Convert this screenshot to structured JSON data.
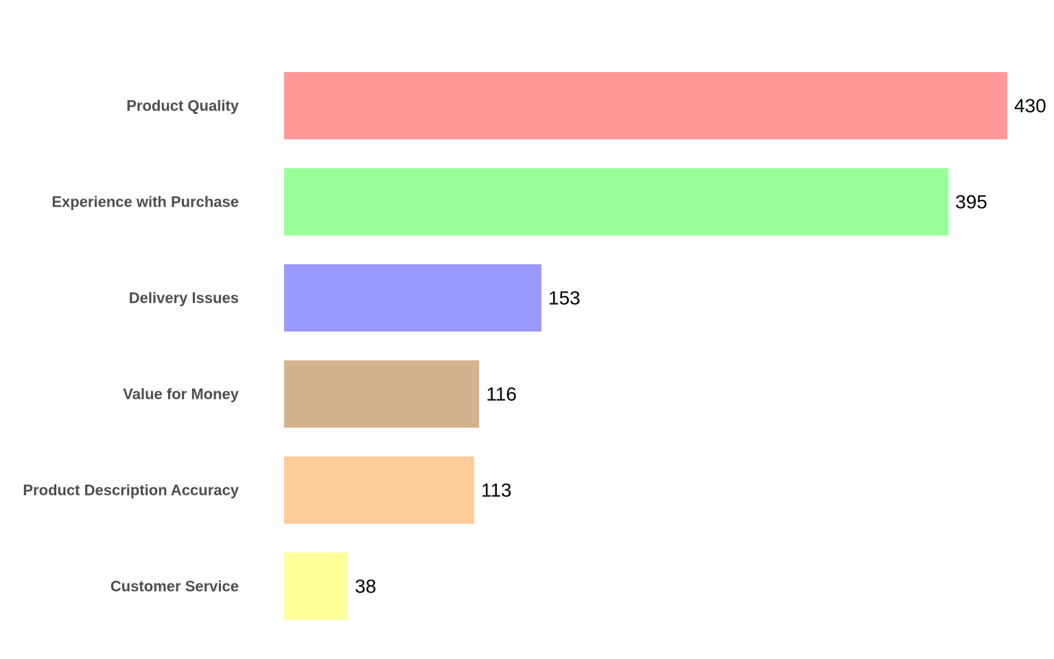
{
  "chart_data": {
    "type": "bar",
    "orientation": "horizontal",
    "title": "",
    "xlabel": "",
    "ylabel": "",
    "categories": [
      "Product Quality",
      "Experience with Purchase",
      "Delivery Issues",
      "Value for Money",
      "Product Description Accuracy",
      "Customer Service"
    ],
    "values": [
      430,
      395,
      153,
      116,
      113,
      38
    ],
    "colors": [
      "#ff9999",
      "#99ff99",
      "#9999ff",
      "#d2b48c",
      "#ffcc99",
      "#ffff99"
    ],
    "value_labels": [
      "430",
      "395",
      "153",
      "116",
      "113",
      "38"
    ],
    "xlim": [
      0,
      430
    ],
    "grid": false,
    "legend": false
  }
}
